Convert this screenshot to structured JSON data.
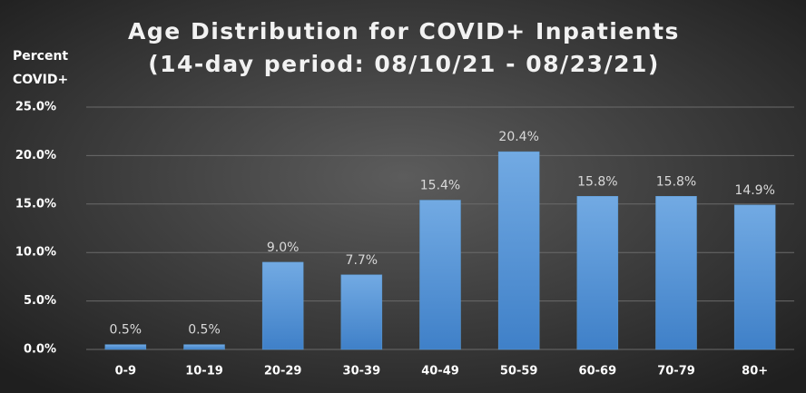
{
  "chart_data": {
    "type": "bar",
    "title": "Age Distribution for COVID+ Inpatients",
    "subtitle": "(14-day period:  08/10/21 - 08/23/21)",
    "ylabel": [
      "Percent",
      "COVID+"
    ],
    "categories": [
      "0-9",
      "10-19",
      "20-29",
      "30-39",
      "40-49",
      "50-59",
      "60-69",
      "70-79",
      "80+"
    ],
    "values": [
      0.5,
      0.5,
      9.0,
      7.7,
      15.4,
      20.4,
      15.8,
      15.8,
      14.9
    ],
    "value_labels": [
      "0.5%",
      "0.5%",
      "9.0%",
      "7.7%",
      "15.4%",
      "20.4%",
      "15.8%",
      "15.8%",
      "14.9%"
    ],
    "color": "#5b9bd5",
    "ylim": [
      0,
      25
    ],
    "yticks": [
      {
        "value": 0,
        "label": "0.0%"
      },
      {
        "value": 5,
        "label": "5.0%"
      },
      {
        "value": 10,
        "label": "10.0%"
      },
      {
        "value": 15,
        "label": "15.0%"
      },
      {
        "value": 20,
        "label": "20.0%"
      },
      {
        "value": 25,
        "label": "25.0%"
      }
    ],
    "grid": true
  }
}
